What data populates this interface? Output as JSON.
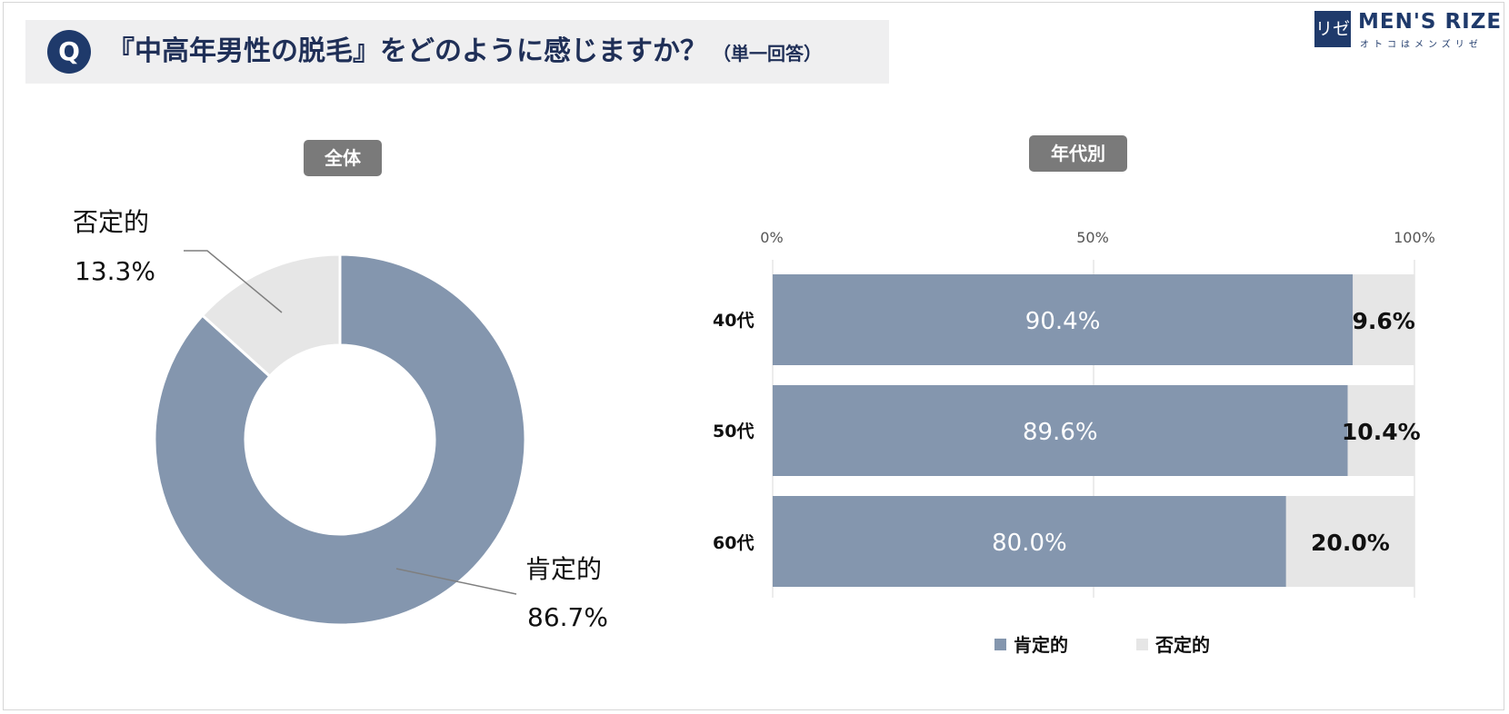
{
  "question": {
    "badge": "Q",
    "text": "『中高年男性の脱毛』をどのように感じますか？",
    "note": "（単一回答）"
  },
  "logo": {
    "mark": "リゼ",
    "name": "MEN'S RIZE",
    "sub": "オトコはメンズリゼ"
  },
  "overall": {
    "title": "全体",
    "positive_label": "肯定的",
    "positive_value": "86.7%",
    "negative_label": "否定的",
    "negative_value": "13.3%"
  },
  "by_age": {
    "title": "年代別",
    "ticks": [
      "0%",
      "50%",
      "100%"
    ],
    "rows": [
      {
        "label": "40代",
        "positive": "90.4%",
        "negative": "9.6%"
      },
      {
        "label": "50代",
        "positive": "89.6%",
        "negative": "10.4%"
      },
      {
        "label": "60代",
        "positive": "80.0%",
        "negative": "20.0%"
      }
    ]
  },
  "legend": {
    "positive": "肯定的",
    "negative": "否定的"
  },
  "colors": {
    "positive": "#8496ae",
    "negative": "#e6e6e6",
    "title_pill": "#7a7a7a",
    "brand": "#1f3a6b"
  },
  "chart_data": [
    {
      "type": "pie",
      "title": "全体",
      "categories": [
        "肯定的",
        "否定的"
      ],
      "values": [
        86.7,
        13.3
      ],
      "unit": "%",
      "donut": true
    },
    {
      "type": "bar",
      "orientation": "horizontal",
      "stacked": true,
      "title": "年代別",
      "categories": [
        "40代",
        "50代",
        "60代"
      ],
      "series": [
        {
          "name": "肯定的",
          "values": [
            90.4,
            89.6,
            80.0
          ]
        },
        {
          "name": "否定的",
          "values": [
            9.6,
            10.4,
            20.0
          ]
        }
      ],
      "xlim": [
        0,
        100
      ],
      "xticks": [
        "0%",
        "50%",
        "100%"
      ],
      "grid": true,
      "legend": "bottom"
    }
  ]
}
